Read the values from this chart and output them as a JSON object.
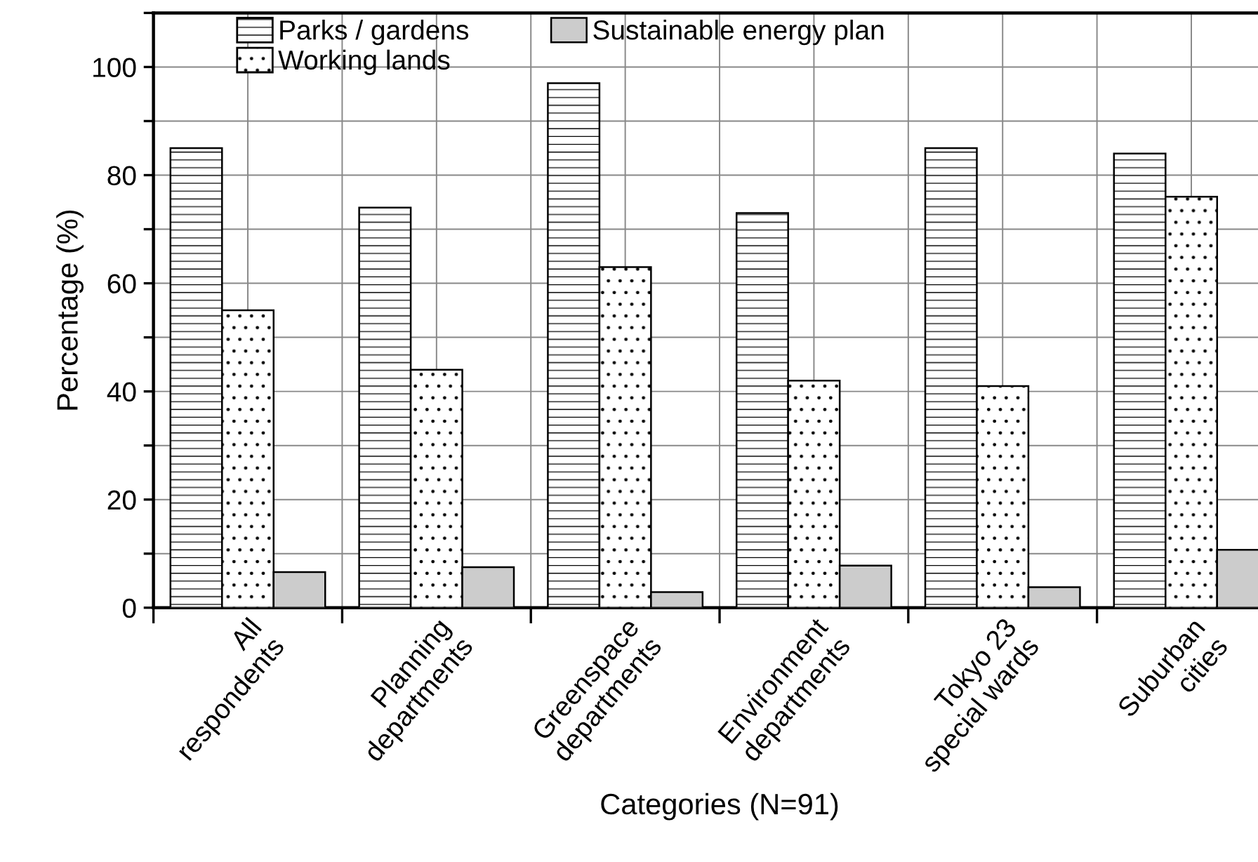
{
  "chart_data": {
    "type": "bar",
    "xlabel": "Categories (N=91)",
    "ylabel": "Percentage (%)",
    "categories": [
      "All\nrespondents",
      "Planning\ndepartments",
      "Greenspace\ndepartments",
      "Environment\ndepartments",
      "Tokyo 23\nspecial wards",
      "Suburban\ncities"
    ],
    "series": [
      {
        "name": "Parks / gardens",
        "color": "#ffffff",
        "values": [
          85,
          74,
          97,
          73,
          85,
          84
        ]
      },
      {
        "name": "Working lands",
        "color": "#ffffff",
        "values": [
          55,
          44,
          63,
          42,
          41,
          76
        ]
      },
      {
        "name": "Sustainable energy plan",
        "color": "#cccccc",
        "values": [
          6.6,
          7.5,
          2.9,
          7.8,
          3.8,
          10.7
        ]
      }
    ],
    "ylim": [
      0,
      110
    ],
    "yticks": [
      0,
      {
        "value": 10,
        "label": null
      },
      20,
      {
        "value": 30,
        "label": null
      },
      40,
      {
        "value": 50,
        "label": null
      },
      60,
      {
        "value": 70,
        "label": null
      },
      80,
      {
        "value": 90,
        "label": null
      },
      100,
      {
        "value": 110,
        "label": null
      }
    ],
    "grid": true,
    "legend": "top"
  }
}
